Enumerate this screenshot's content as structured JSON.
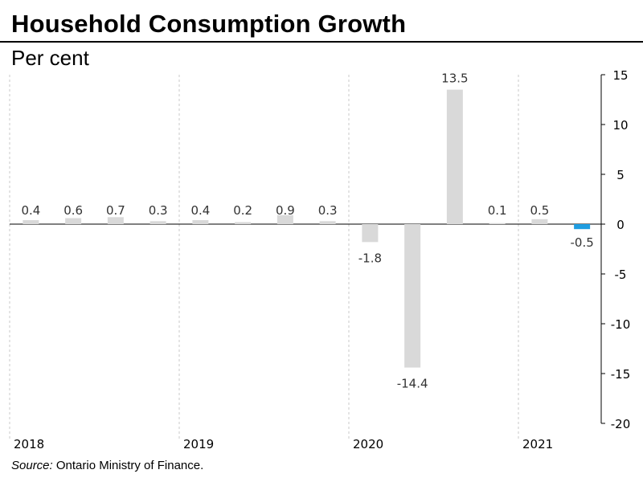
{
  "title": "Household Consumption Growth",
  "subtitle": "Per cent",
  "source_prefix": "Source:",
  "source_text": " Ontario Ministry of Finance.",
  "chart_data": {
    "type": "bar",
    "title": "Household Consumption Growth",
    "ylabel": "Per cent",
    "xlabel": "",
    "ylim": [
      -20,
      15
    ],
    "yticks": [
      15,
      10,
      5,
      0,
      -5,
      -10,
      -15,
      -20
    ],
    "grid": false,
    "year_labels": [
      "2018",
      "2019",
      "2020",
      "2021"
    ],
    "categories": [
      "2018 Q1",
      "2018 Q2",
      "2018 Q3",
      "2018 Q4",
      "2019 Q1",
      "2019 Q2",
      "2019 Q3",
      "2019 Q4",
      "2020 Q1",
      "2020 Q2",
      "2020 Q3",
      "2020 Q4",
      "2021 Q1",
      "2021 Q2"
    ],
    "values": [
      0.4,
      0.6,
      0.7,
      0.3,
      0.4,
      0.2,
      0.9,
      0.3,
      -1.8,
      -14.4,
      13.5,
      0.1,
      0.5,
      -0.5
    ],
    "labels": [
      "0.4",
      "0.6",
      "0.7",
      "0.3",
      "0.4",
      "0.2",
      "0.9",
      "0.3",
      "-1.8",
      "-14.4",
      "13.5",
      "0.1",
      "0.5",
      "-0.5"
    ],
    "highlight_index": 13,
    "colors": {
      "bar": "#d9d9d9",
      "highlight": "#1f9de0",
      "axis": "#000000",
      "divider": "#c8c8c8"
    }
  }
}
